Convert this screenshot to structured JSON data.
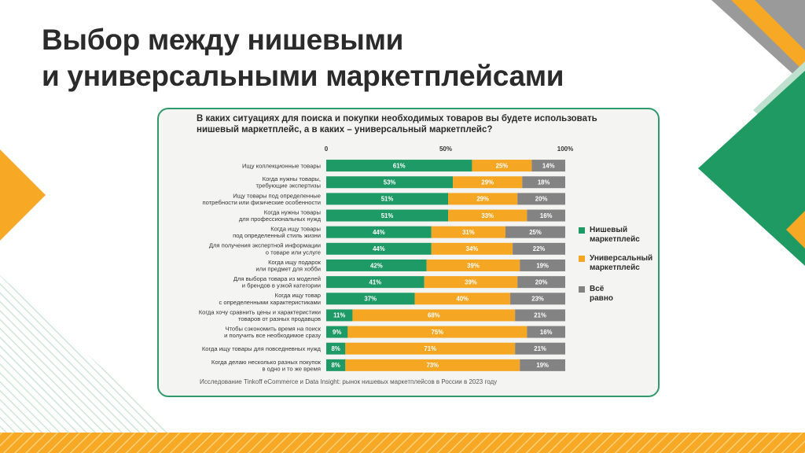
{
  "page": {
    "title_lines": [
      "Выбор между нишевыми",
      "и универсальными маркетплейсами"
    ],
    "question_lines": [
      "В каких ситуациях для поиска и покупки необходимых товаров вы будете использовать",
      "нишевый маркетплейс, а в каких – универсальный маркетплейс?"
    ],
    "source": "Исследование Tinkoff eCommerce и Data Insight: рынок нишевых маркетплейсов в России в 2023 году"
  },
  "colors": {
    "niche": "#1e9a66",
    "universal": "#f5a623",
    "indifferent": "#838383",
    "accent_green": "#2e9a6c",
    "accent_orange": "#f7a824",
    "stripe_light": "#d7ebe1"
  },
  "legend": [
    {
      "key": "niche",
      "lines": [
        "Нишевый",
        "маркетплейс"
      ]
    },
    {
      "key": "universal",
      "lines": [
        "Универсальный",
        "маркетплейс"
      ]
    },
    {
      "key": "indifferent",
      "lines": [
        "Всё равно"
      ]
    }
  ],
  "chart_data": {
    "type": "bar",
    "orientation": "horizontal",
    "stacked": true,
    "xlim": [
      0,
      100
    ],
    "x_ticks": [
      "0",
      "50%",
      "100%"
    ],
    "value_suffix": "%",
    "categories": [
      [
        "Ищу коллекционные товары"
      ],
      [
        "Когда нужны товары,",
        "требующие экспертизы"
      ],
      [
        "Ищу товары под  определенные",
        "потребности или физические особенности"
      ],
      [
        "Когда нужны товары",
        "для профессиональных нужд"
      ],
      [
        "Когда ищу товары",
        "под определенный стиль жизни"
      ],
      [
        "Для получения экспертной информации",
        "о товаре или услуге"
      ],
      [
        "Когда ищу  подарок",
        "или предмет для хобби"
      ],
      [
        "Для выбора товара из моделей",
        "и брендов в узкой категории"
      ],
      [
        "Когда ищу товар",
        "с определенными характеристиками"
      ],
      [
        "Когда хочу сравнить цены и характеристики",
        "товаров от разных продавцов"
      ],
      [
        "Чтобы сэкономить время на поиск",
        "и получить все необходимое сразу"
      ],
      [
        "Когда ищу товары для повседневных нужд"
      ],
      [
        "Когда делаю несколько разных покупок",
        "в одно и то же время"
      ]
    ],
    "series": [
      {
        "key": "niche",
        "name": "Нишевый маркетплейс",
        "values": [
          61,
          53,
          51,
          51,
          44,
          44,
          42,
          41,
          37,
          11,
          9,
          8,
          8
        ]
      },
      {
        "key": "universal",
        "name": "Универсальный маркетплейс",
        "values": [
          25,
          29,
          29,
          33,
          31,
          34,
          39,
          39,
          40,
          68,
          75,
          71,
          73
        ]
      },
      {
        "key": "indifferent",
        "name": "Всё равно",
        "values": [
          14,
          18,
          20,
          16,
          25,
          22,
          19,
          20,
          23,
          21,
          16,
          21,
          19
        ]
      }
    ]
  }
}
